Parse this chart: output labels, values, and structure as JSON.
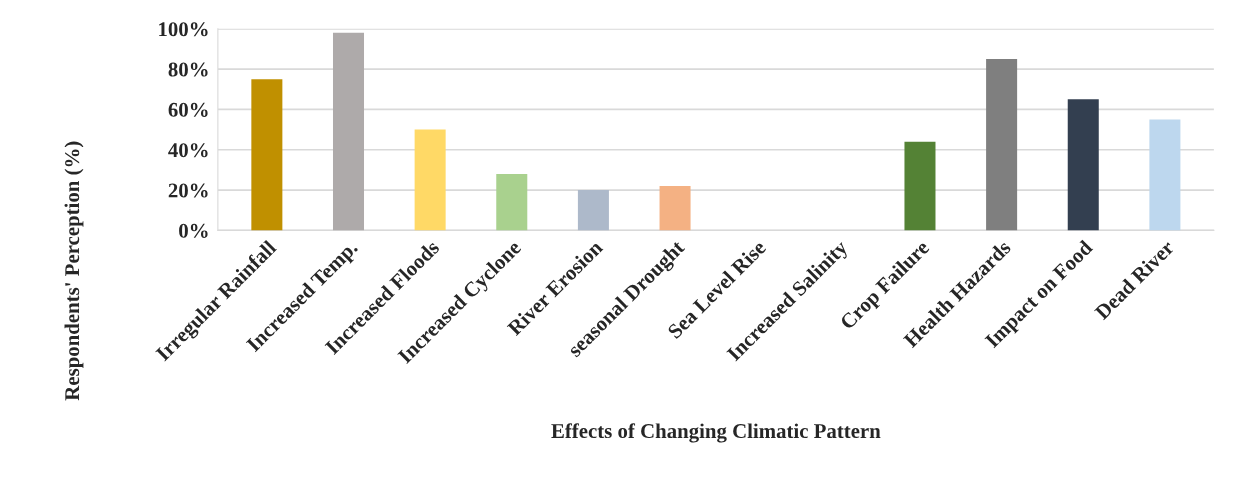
{
  "chart_data": {
    "type": "bar",
    "xlabel": "Effects of Changing Climatic Pattern",
    "ylabel": "Respondents' Perception (%)",
    "categories": [
      "Irregular Rainfall",
      "Increased Temp.",
      "Increased Floods",
      "Increased Cyclone",
      "River Erosion",
      "seasonal Drought",
      "Sea Level Rise",
      "Increased Salinity",
      "Crop Failure",
      "Health Hazards",
      "Impact on Food",
      "Dead River"
    ],
    "values": [
      75,
      98,
      50,
      28,
      20,
      22,
      0,
      0,
      44,
      85,
      65,
      55
    ],
    "colors": [
      "#c09000",
      "#aeaaaa",
      "#ffd966",
      "#a9d18e",
      "#adb9ca",
      "#f4b183",
      "#c00000",
      "#c00000",
      "#548235",
      "#7f7f7f",
      "#333f50",
      "#bdd7ee"
    ],
    "ylim": [
      0,
      100
    ],
    "yticks": [
      {
        "value": 0,
        "label": "0%"
      },
      {
        "value": 20,
        "label": "20%"
      },
      {
        "value": 40,
        "label": "40%"
      },
      {
        "value": 60,
        "label": "60%"
      },
      {
        "value": 80,
        "label": "80%"
      },
      {
        "value": 100,
        "label": "100%"
      }
    ],
    "grid": "y"
  }
}
